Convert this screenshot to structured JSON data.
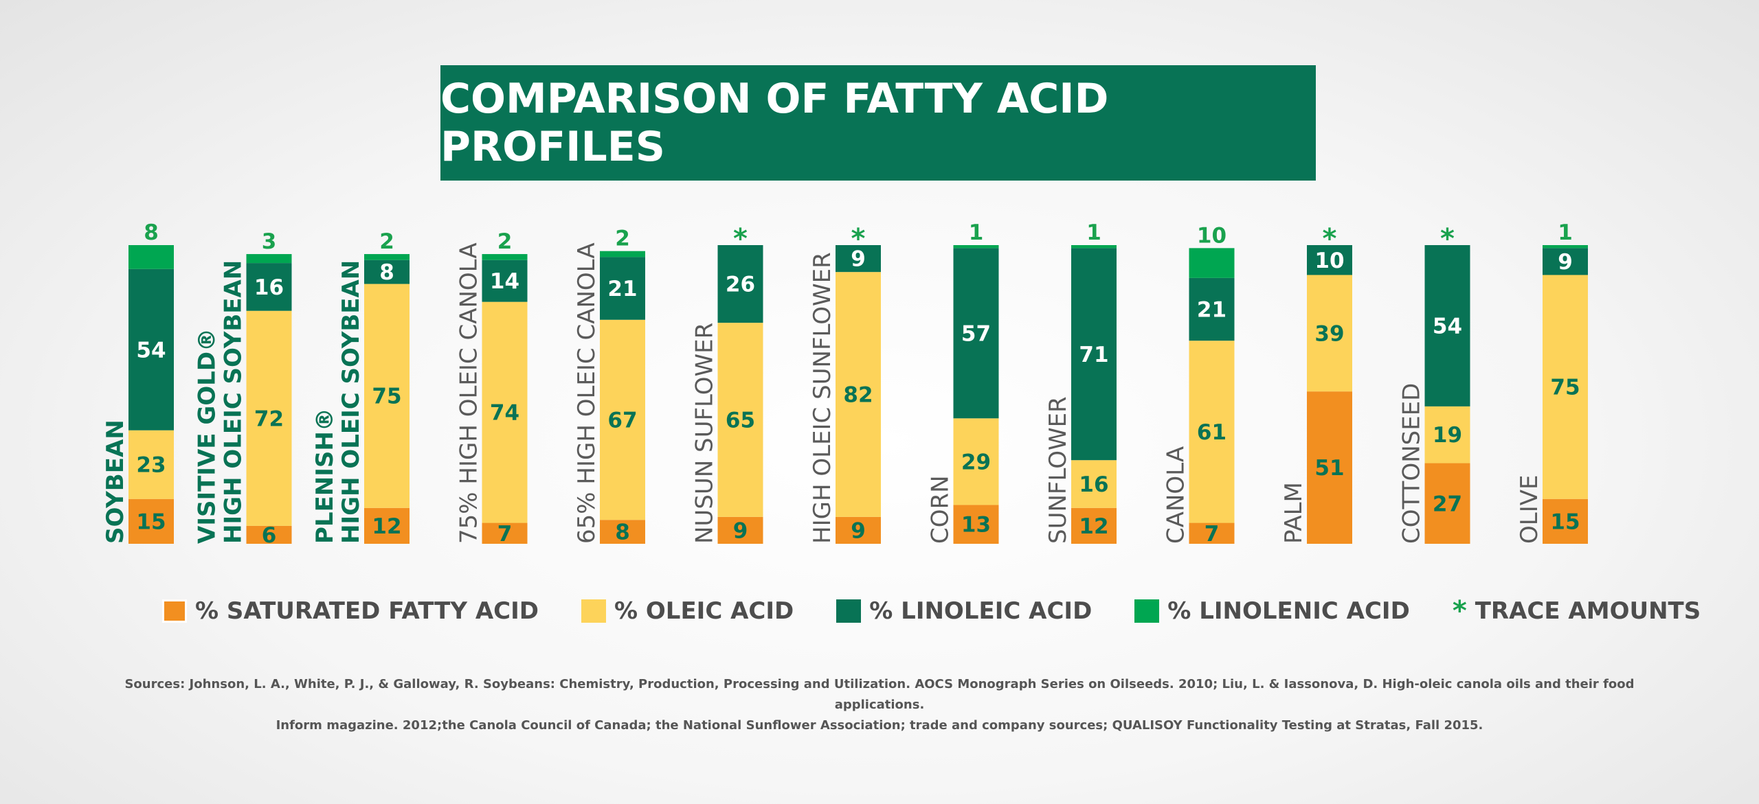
{
  "title": "COMPARISON OF FATTY ACID PROFILES",
  "colors": {
    "saturated": "#f28f20",
    "oleic": "#fdd35a",
    "linoleic": "#087355",
    "linolenic": "#00a651",
    "label_green": "#087355",
    "label_gray": "#5a5a5a",
    "value_dark": "#087355",
    "value_light": "#ffffff",
    "top_value": "#1aa24e"
  },
  "chart_data": {
    "type": "bar",
    "stacked": true,
    "title": "COMPARISON OF FATTY ACID PROFILES",
    "categories": [
      [
        "SOYBEAN"
      ],
      [
        "VISITIVE GOLD®",
        "HIGH OLEIC SOYBEAN"
      ],
      [
        "PLENISH®",
        "HIGH OLEIC SOYBEAN"
      ],
      [
        "75% HIGH OLEIC CANOLA"
      ],
      [
        "65% HIGH OLEIC CANOLA"
      ],
      [
        "NUSUN SUFLOWER"
      ],
      [
        "HIGH OLEIC SUNFLOWER"
      ],
      [
        "CORN"
      ],
      [
        "SUNFLOWER"
      ],
      [
        "CANOLA"
      ],
      [
        "PALM"
      ],
      [
        "COTTONSEED"
      ],
      [
        "OLIVE"
      ]
    ],
    "label_style": [
      "green",
      "green",
      "green",
      "gray",
      "gray",
      "gray",
      "gray",
      "gray",
      "gray",
      "gray",
      "gray",
      "gray",
      "gray"
    ],
    "series": [
      {
        "name": "% SATURATED FATTY ACID",
        "key": "saturated",
        "values": [
          15,
          6,
          12,
          7,
          8,
          9,
          9,
          13,
          12,
          7,
          51,
          27,
          15
        ]
      },
      {
        "name": "% OLEIC ACID",
        "key": "oleic",
        "values": [
          23,
          72,
          75,
          74,
          67,
          65,
          82,
          29,
          16,
          61,
          39,
          19,
          75
        ]
      },
      {
        "name": "% LINOLEIC ACID",
        "key": "linoleic",
        "values": [
          54,
          16,
          8,
          14,
          21,
          26,
          9,
          57,
          71,
          21,
          10,
          54,
          9
        ]
      },
      {
        "name": "% LINOLENIC ACID",
        "key": "linolenic",
        "values": [
          8,
          3,
          2,
          2,
          2,
          0,
          0,
          1,
          1,
          10,
          0,
          0,
          1
        ]
      }
    ],
    "linolenic_labels": [
      "8",
      "3",
      "2",
      "2",
      "2",
      "*",
      "*",
      "1",
      "1",
      "10",
      "*",
      "*",
      "1"
    ],
    "ylim": [
      0,
      100
    ]
  },
  "legend": [
    {
      "label": "% SATURATED FATTY ACID",
      "key": "saturated"
    },
    {
      "label": "% OLEIC ACID",
      "key": "oleic"
    },
    {
      "label": "% LINOLEIC ACID",
      "key": "linoleic"
    },
    {
      "label": "% LINOLENIC ACID",
      "key": "linolenic"
    },
    {
      "label": "TRACE AMOUNTS",
      "key": "trace",
      "symbol": "*"
    }
  ],
  "sources": {
    "line1": "Sources:  Johnson, L. A., White, P. J., & Galloway, R. Soybeans: Chemistry, Production, Processing and Utilization. AOCS Monograph Series on Oilseeds. 2010; Liu, L. & Iassonova, D. High-oleic canola oils and their food applications.",
    "line2": "Inform magazine. 2012;the Canola Council of Canada; the National Sunflower Association; trade and company sources; QUALISOY Functionality Testing at Stratas, Fall 2015."
  }
}
